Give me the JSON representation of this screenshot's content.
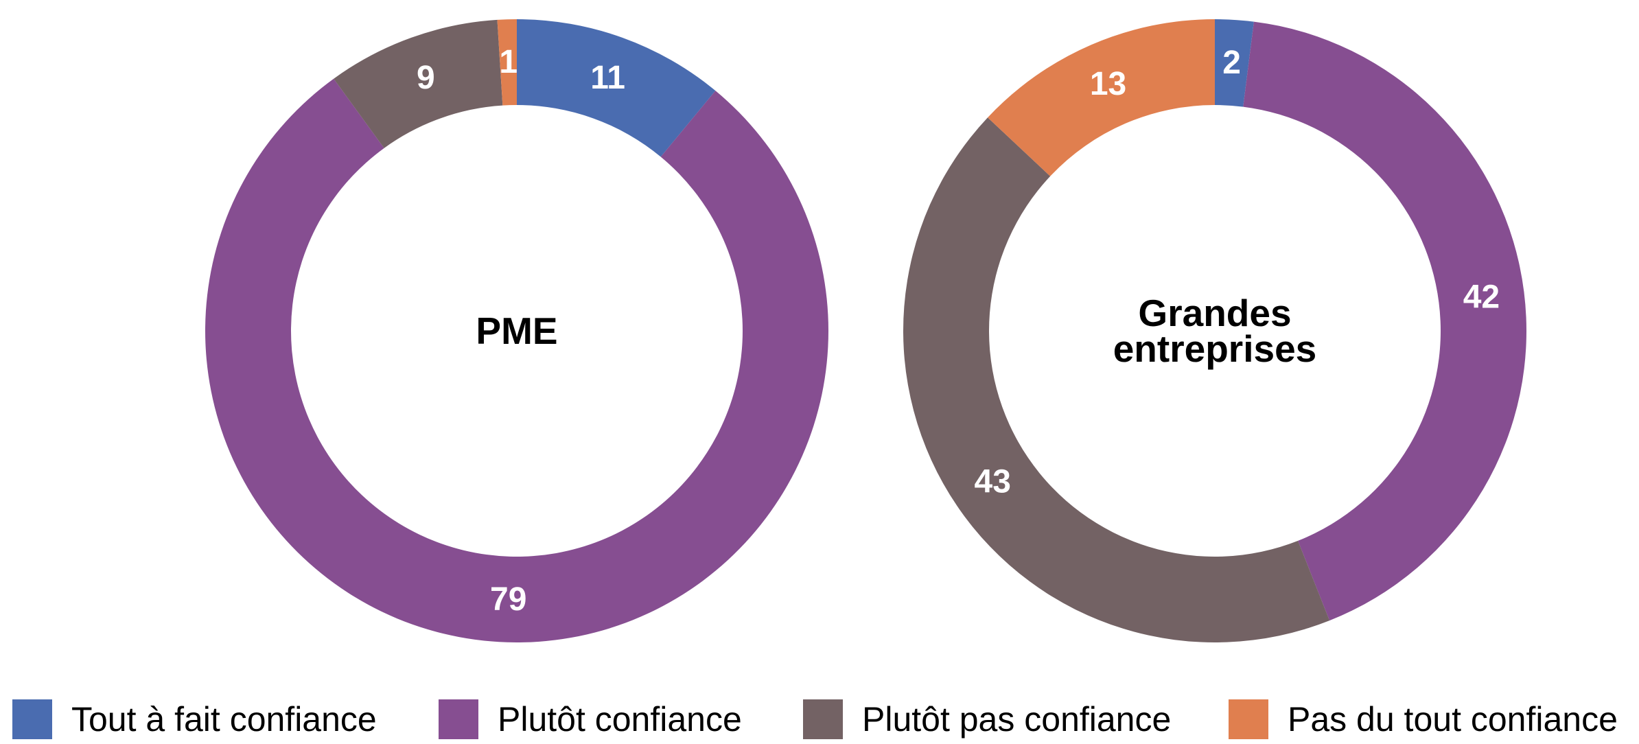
{
  "chart_data": [
    {
      "type": "pie",
      "title": "PME",
      "categories": [
        "Tout à fait confiance",
        "Plutôt confiance",
        "Plutôt pas confiance",
        "Pas du tout confiance"
      ],
      "values": [
        11,
        79,
        9,
        1
      ],
      "colors": [
        "#4a6cb0",
        "#864e91",
        "#736264",
        "#e07f4f"
      ]
    },
    {
      "type": "pie",
      "title": "Grandes entreprises",
      "categories": [
        "Tout à fait confiance",
        "Plutôt confiance",
        "Plutôt pas confiance",
        "Pas du tout confiance"
      ],
      "values": [
        2,
        42,
        43,
        13
      ],
      "colors": [
        "#4a6cb0",
        "#864e91",
        "#736264",
        "#e07f4f"
      ]
    }
  ]
}
